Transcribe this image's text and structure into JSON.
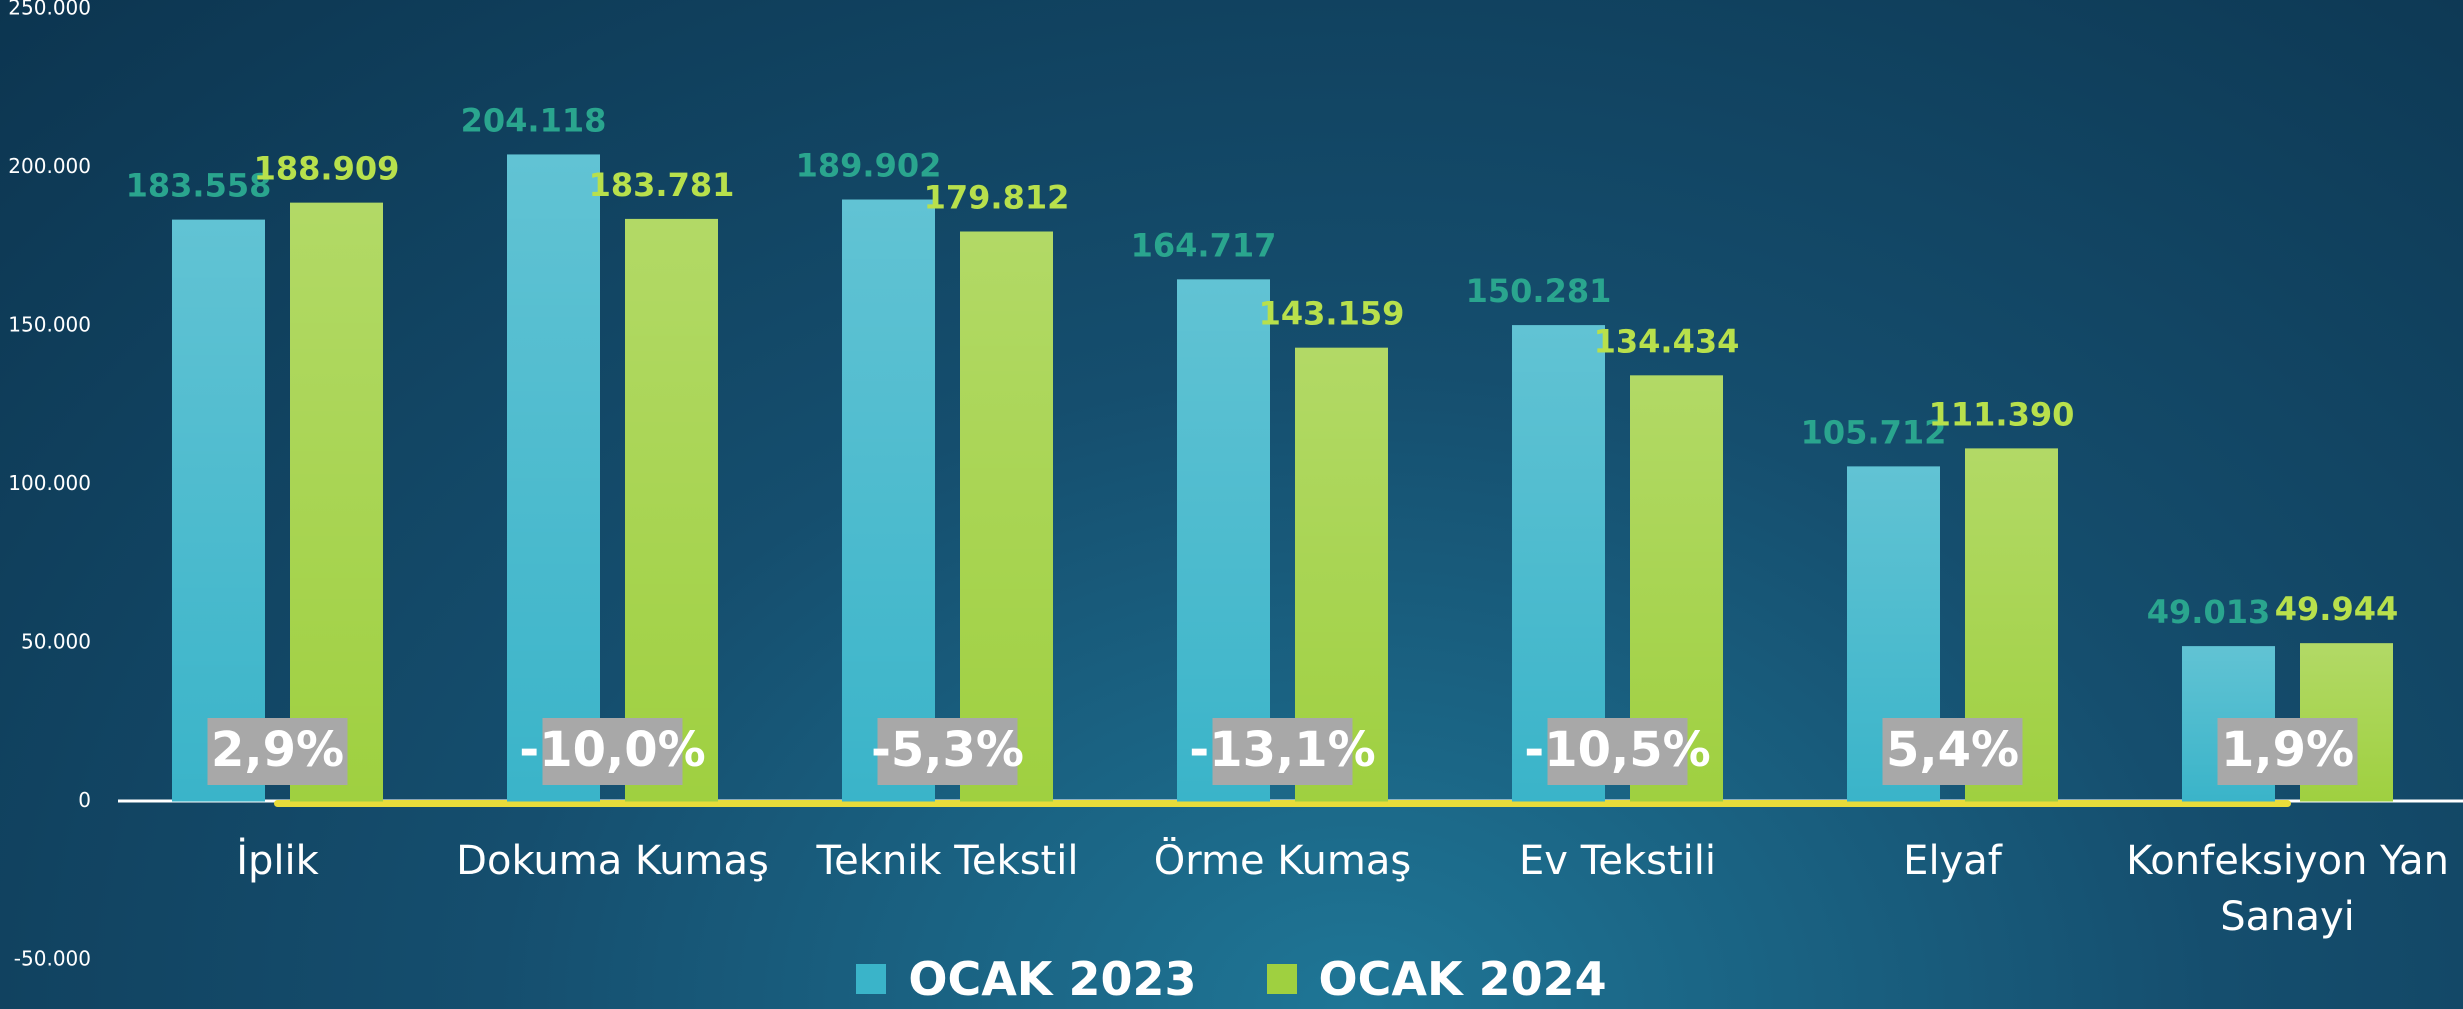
{
  "chart_data": {
    "type": "bar",
    "categories": [
      "İplik",
      "Dokuma Kumaş",
      "Teknik Tekstil",
      "Örme Kumaş",
      "Ev Tekstili",
      "Elyaf",
      "Konfeksiyon Yan Sanayi"
    ],
    "series": [
      {
        "name": "OCAK 2023",
        "color": "#3ab4c9",
        "label_color": "#2aa58e",
        "values": [
          183558,
          204118,
          189902,
          164717,
          150281,
          105712,
          49013
        ],
        "value_labels": [
          "183.558",
          "204.118",
          "189.902",
          "164.717",
          "150.281",
          "105.712",
          "49.013"
        ]
      },
      {
        "name": "OCAK 2024",
        "color": "#9fd040",
        "label_color": "#b8e04c",
        "values": [
          188909,
          183781,
          179812,
          143159,
          134434,
          111390,
          49944
        ],
        "value_labels": [
          "188.909",
          "183.781",
          "179.812",
          "143.159",
          "134.434",
          "111.390",
          "49.944"
        ]
      }
    ],
    "change_labels": [
      "2,9%",
      "-10,0%",
      "-5,3%",
      "-13,1%",
      "-10,5%",
      "5,4%",
      "1,9%"
    ],
    "ylim": [
      -50000,
      250000
    ],
    "yticks": [
      {
        "value": -50000,
        "label": "-50.000"
      },
      0,
      {
        "value": 50000,
        "label": "50.000"
      },
      {
        "value": 100000,
        "label": "100.000"
      },
      {
        "value": 150000,
        "label": "150.000"
      },
      {
        "value": 200000,
        "label": "200.000"
      },
      {
        "value": 250000,
        "label": "250.000"
      }
    ],
    "grid": false
  }
}
